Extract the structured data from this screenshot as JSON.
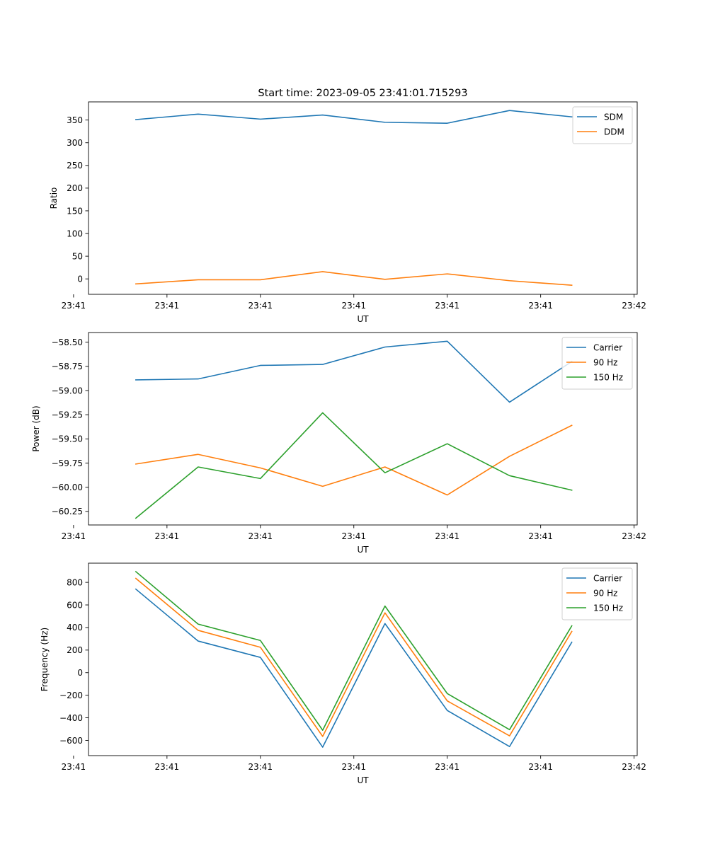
{
  "title": "Start time: 2023-09-05 23:41:01.715293",
  "colors": {
    "blue": "#1f77b4",
    "orange": "#ff7f0e",
    "green": "#2ca02c"
  },
  "chart_data": [
    {
      "type": "line",
      "title": "Start time: 2023-09-05 23:41:01.715293",
      "xlabel": "UT",
      "ylabel": "Ratio",
      "x": [
        1,
        2,
        3,
        4,
        5,
        6,
        7,
        8
      ],
      "xlim": [
        0.24,
        9.05
      ],
      "xticks": [
        0,
        1.5,
        3,
        4.5,
        6,
        7.5,
        9
      ],
      "xtick_labels": [
        "23:41",
        "23:41",
        "23:41",
        "23:41",
        "23:41",
        "23:41",
        "23:42"
      ],
      "ylim": [
        -34,
        390
      ],
      "yticks": [
        0,
        50,
        100,
        150,
        200,
        250,
        300,
        350
      ],
      "ytick_labels": [
        "0",
        "50",
        "100",
        "150",
        "200",
        "250",
        "300",
        "350"
      ],
      "legend_position": "top-right",
      "series": [
        {
          "name": "SDM",
          "color": "#1f77b4",
          "values": [
            351,
            363,
            352,
            361,
            345,
            343,
            371,
            357
          ]
        },
        {
          "name": "DDM",
          "color": "#ff7f0e",
          "values": [
            -11,
            -2,
            -2,
            16,
            -1,
            11,
            -4,
            -14
          ]
        }
      ]
    },
    {
      "type": "line",
      "title": "",
      "xlabel": "UT",
      "ylabel": "Power (dB)",
      "x": [
        1,
        2,
        3,
        4,
        5,
        6,
        7,
        8
      ],
      "xlim": [
        0.24,
        9.05
      ],
      "xticks": [
        0,
        1.5,
        3,
        4.5,
        6,
        7.5,
        9
      ],
      "xtick_labels": [
        "23:41",
        "23:41",
        "23:41",
        "23:41",
        "23:41",
        "23:41",
        "23:42"
      ],
      "ylim": [
        -60.39,
        -58.4
      ],
      "yticks": [
        -58.5,
        -58.75,
        -59.0,
        -59.25,
        -59.5,
        -59.75,
        -60.0,
        -60.25
      ],
      "ytick_labels": [
        "−58.50",
        "−58.75",
        "−59.00",
        "−59.25",
        "−59.50",
        "−59.75",
        "−60.00",
        "−60.25"
      ],
      "legend_position": "top-right",
      "series": [
        {
          "name": "Carrier",
          "color": "#1f77b4",
          "values": [
            -58.89,
            -58.88,
            -58.74,
            -58.73,
            -58.55,
            -58.49,
            -59.12,
            -58.7
          ]
        },
        {
          "name": "90 Hz",
          "color": "#ff7f0e",
          "values": [
            -59.76,
            -59.66,
            -59.8,
            -59.99,
            -59.79,
            -60.08,
            -59.68,
            -59.36
          ]
        },
        {
          "name": "150 Hz",
          "color": "#2ca02c",
          "values": [
            -60.32,
            -59.79,
            -59.91,
            -59.23,
            -59.85,
            -59.55,
            -59.88,
            -60.03
          ]
        }
      ]
    },
    {
      "type": "line",
      "title": "",
      "xlabel": "UT",
      "ylabel": "Frequency (Hz)",
      "x": [
        1,
        2,
        3,
        4,
        5,
        6,
        7,
        8
      ],
      "xlim": [
        0.24,
        9.05
      ],
      "xticks": [
        0,
        1.5,
        3,
        4.5,
        6,
        7.5,
        9
      ],
      "xtick_labels": [
        "23:41",
        "23:41",
        "23:41",
        "23:41",
        "23:41",
        "23:41",
        "23:42"
      ],
      "ylim": [
        -735,
        970
      ],
      "yticks": [
        800,
        600,
        400,
        200,
        0,
        -200,
        -400,
        -600
      ],
      "ytick_labels": [
        "800",
        "600",
        "400",
        "200",
        "0",
        "−200",
        "−400",
        "−600"
      ],
      "legend_position": "top-right",
      "series": [
        {
          "name": "Carrier",
          "color": "#1f77b4",
          "values": [
            740,
            280,
            135,
            -660,
            435,
            -335,
            -655,
            270
          ]
        },
        {
          "name": "90 Hz",
          "color": "#ff7f0e",
          "values": [
            835,
            375,
            225,
            -565,
            530,
            -250,
            -560,
            365
          ]
        },
        {
          "name": "150 Hz",
          "color": "#2ca02c",
          "values": [
            895,
            430,
            285,
            -510,
            590,
            -185,
            -505,
            415
          ]
        }
      ]
    }
  ]
}
